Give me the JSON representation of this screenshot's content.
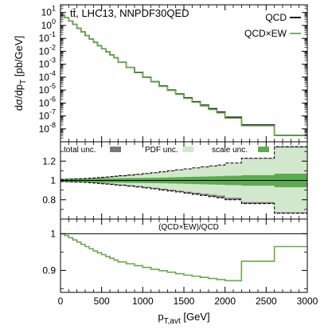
{
  "chart_data": {
    "type": "step",
    "x_label": "p_T,avt [GeV]",
    "x_ticks": [
      0,
      500,
      1000,
      1500,
      2000,
      2500,
      3000
    ],
    "x_range": [
      0,
      3000
    ],
    "bin_edges": [
      0,
      50,
      100,
      150,
      200,
      250,
      300,
      350,
      400,
      450,
      500,
      550,
      600,
      650,
      700,
      800,
      900,
      1000,
      1100,
      1200,
      1300,
      1400,
      1500,
      1600,
      1700,
      1800,
      1900,
      2000,
      2200,
      2600,
      3000
    ],
    "panels": [
      {
        "id": "main",
        "title": "tt̄, LHC13, NNPDF30QED",
        "y_label": "dσ/dp_T [pb/GeV]",
        "y_scale": "log",
        "y_range_exponent": [
          -9,
          1.6
        ],
        "y_tick_exponents": [
          1,
          0,
          -1,
          -2,
          -3,
          -4,
          -5,
          -6,
          -7,
          -8
        ],
        "legend": [
          {
            "name": "QCD",
            "color": "#000000"
          },
          {
            "name": "QCD×EW",
            "color": "#6aa84f"
          }
        ],
        "series_log10": [
          {
            "name": "QCD",
            "values": [
              0.8,
              0.6,
              0.35,
              0.08,
              -0.22,
              -0.5,
              -0.78,
              -1.05,
              -1.31,
              -1.56,
              -1.8,
              -2.04,
              -2.27,
              -2.5,
              -2.85,
              -3.25,
              -3.63,
              -4.0,
              -4.35,
              -4.68,
              -5.0,
              -5.3,
              -5.6,
              -5.9,
              -6.17,
              -6.44,
              -6.7,
              -7.1,
              -7.7,
              -8.5
            ]
          },
          {
            "name": "QCD×EW",
            "values": [
              0.8,
              0.6,
              0.35,
              0.08,
              -0.22,
              -0.51,
              -0.79,
              -1.06,
              -1.32,
              -1.57,
              -1.81,
              -2.05,
              -2.28,
              -2.51,
              -2.86,
              -3.26,
              -3.65,
              -4.02,
              -4.37,
              -4.71,
              -5.03,
              -5.33,
              -5.64,
              -5.94,
              -6.22,
              -6.5,
              -6.76,
              -7.17,
              -7.76,
              -8.52
            ]
          }
        ]
      },
      {
        "id": "uncertainty",
        "y_range": [
          0.6,
          1.4
        ],
        "y_ticks": [
          0.8,
          1,
          1.2
        ],
        "legend": [
          {
            "name": "total unc.",
            "color": "#777777"
          },
          {
            "name": "PDF unc.",
            "color": "#d2e8cc"
          },
          {
            "name": "scale unc.",
            "color": "#5cab4e"
          }
        ],
        "bands": {
          "total_up": [
            1.01,
            1.012,
            1.014,
            1.016,
            1.018,
            1.02,
            1.022,
            1.024,
            1.027,
            1.03,
            1.033,
            1.036,
            1.04,
            1.044,
            1.05,
            1.057,
            1.064,
            1.072,
            1.08,
            1.09,
            1.1,
            1.11,
            1.12,
            1.13,
            1.14,
            1.15,
            1.16,
            1.18,
            1.23,
            1.35
          ],
          "total_down": [
            0.99,
            0.988,
            0.986,
            0.984,
            0.982,
            0.98,
            0.978,
            0.975,
            0.972,
            0.968,
            0.965,
            0.962,
            0.958,
            0.954,
            0.948,
            0.94,
            0.932,
            0.922,
            0.912,
            0.9,
            0.89,
            0.88,
            0.868,
            0.856,
            0.844,
            0.832,
            0.82,
            0.8,
            0.76,
            0.66
          ],
          "pdf_up": [
            1.005,
            1.006,
            1.007,
            1.008,
            1.01,
            1.012,
            1.014,
            1.016,
            1.019,
            1.022,
            1.025,
            1.028,
            1.032,
            1.036,
            1.042,
            1.05,
            1.058,
            1.067,
            1.076,
            1.086,
            1.096,
            1.107,
            1.118,
            1.128,
            1.138,
            1.148,
            1.158,
            1.18,
            1.225,
            1.34
          ],
          "pdf_down": [
            0.995,
            0.994,
            0.993,
            0.992,
            0.99,
            0.988,
            0.986,
            0.984,
            0.981,
            0.978,
            0.975,
            0.972,
            0.968,
            0.964,
            0.958,
            0.95,
            0.942,
            0.933,
            0.924,
            0.914,
            0.904,
            0.893,
            0.882,
            0.872,
            0.862,
            0.852,
            0.842,
            0.82,
            0.775,
            0.67
          ],
          "scale_up": [
            1.018,
            1.018,
            1.018,
            1.018,
            1.019,
            1.019,
            1.02,
            1.02,
            1.021,
            1.021,
            1.022,
            1.022,
            1.023,
            1.023,
            1.024,
            1.025,
            1.026,
            1.027,
            1.028,
            1.03,
            1.032,
            1.034,
            1.036,
            1.038,
            1.04,
            1.042,
            1.044,
            1.048,
            1.055,
            1.07
          ],
          "scale_down": [
            0.982,
            0.982,
            0.982,
            0.982,
            0.981,
            0.981,
            0.98,
            0.98,
            0.979,
            0.979,
            0.978,
            0.978,
            0.977,
            0.977,
            0.976,
            0.975,
            0.974,
            0.973,
            0.972,
            0.97,
            0.968,
            0.966,
            0.964,
            0.962,
            0.96,
            0.958,
            0.956,
            0.952,
            0.945,
            0.93
          ]
        }
      },
      {
        "id": "ratio",
        "label": "(QCD×EW)/QCD",
        "y_range": [
          0.84,
          1.04
        ],
        "y_ticks": [
          0.9,
          1
        ],
        "reference_line": 1,
        "series": [
          {
            "name": "(QCD×EW)/QCD",
            "color": "#6aa84f",
            "values": [
              1.0,
              0.995,
              0.989,
              0.983,
              0.977,
              0.971,
              0.965,
              0.959,
              0.953,
              0.948,
              0.943,
              0.938,
              0.933,
              0.928,
              0.923,
              0.918,
              0.913,
              0.908,
              0.903,
              0.899,
              0.895,
              0.891,
              0.887,
              0.884,
              0.881,
              0.878,
              0.875,
              0.872,
              0.925,
              0.965
            ]
          }
        ]
      }
    ]
  }
}
